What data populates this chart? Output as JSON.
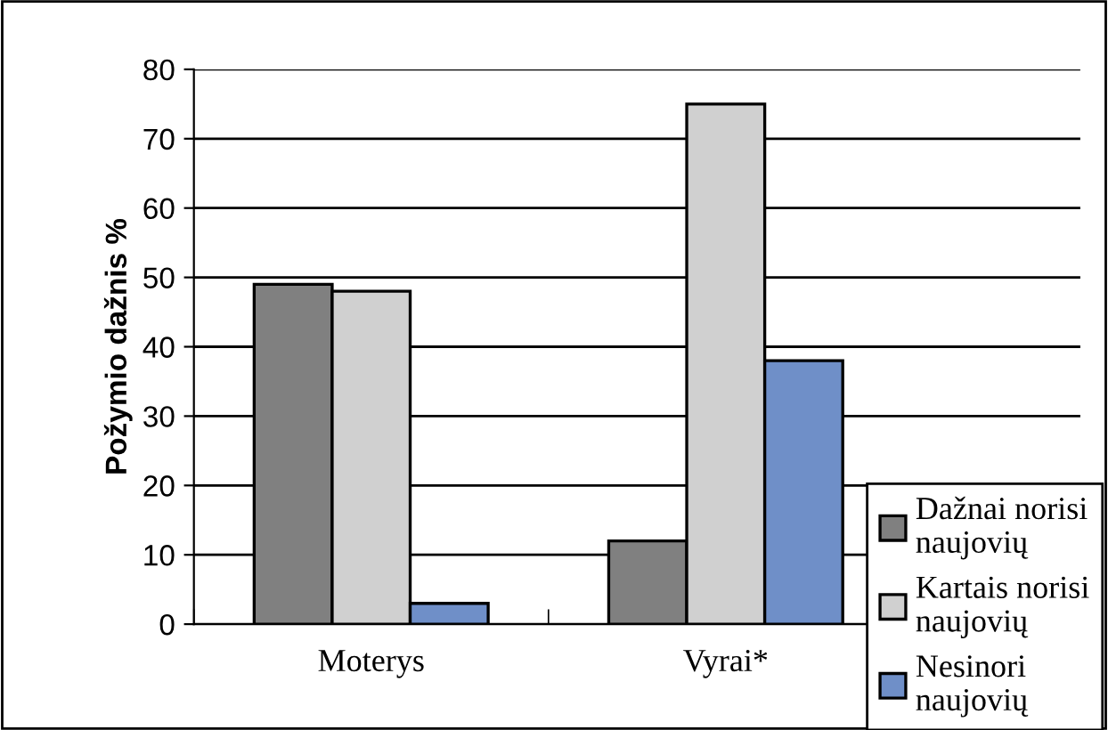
{
  "chart_data": {
    "type": "bar",
    "ylabel": "Požymio dažnis %",
    "categories": [
      "Moterys",
      "Vyrai*"
    ],
    "series": [
      {
        "name": "Dažnai norisi naujovių",
        "color": "#808080",
        "values": [
          49,
          12
        ]
      },
      {
        "name": "Kartais norisi naujovių",
        "color": "#d0d0d0",
        "values": [
          48,
          75
        ]
      },
      {
        "name": "Nesinori naujovių",
        "color": "#6f8fc8",
        "values": [
          3,
          38
        ]
      }
    ],
    "ylim": [
      0,
      80
    ],
    "yticks": [
      0,
      10,
      20,
      30,
      40,
      50,
      60,
      70,
      80
    ],
    "grid": "y",
    "legend": "bottom right"
  }
}
